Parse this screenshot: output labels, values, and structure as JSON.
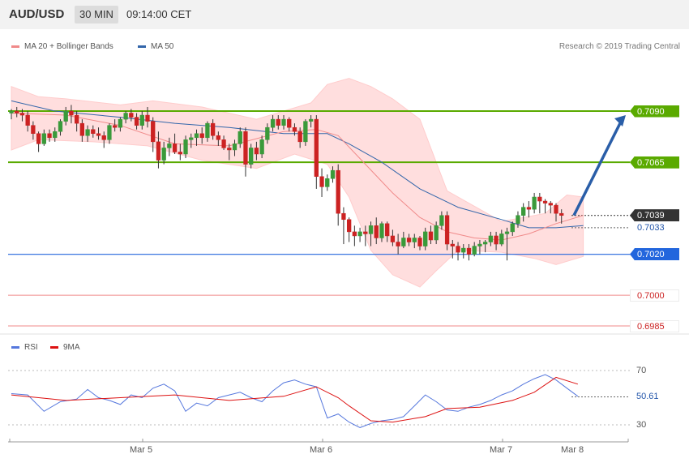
{
  "header": {
    "pair": "AUD/USD",
    "timeframe": "30 MIN",
    "time": "09:14:00 CET"
  },
  "legend": {
    "bb_label": "MA 20 + Bollinger Bands",
    "ma50_label": "MA 50",
    "rsi_label": "RSI",
    "ma9_label": "9MA"
  },
  "copyright": "Research © 2019 Trading Central",
  "colors": {
    "bull": "#3a9a3a",
    "bear": "#cc2222",
    "bb_fill": "#ffdede",
    "ma20": "#f08a8a",
    "ma50": "#3366aa",
    "resistance": "#5aaa00",
    "pivot": "#2266dd",
    "support": "#f08a8a",
    "rsi": "#5577dd",
    "rsi_ma": "#dd1111",
    "arrow": "#2a5ea8"
  },
  "price_levels": [
    {
      "label": "0.7090",
      "value": 0.709,
      "kind": "resistance"
    },
    {
      "label": "0.7065",
      "value": 0.7065,
      "kind": "resistance"
    },
    {
      "label": "0.7039",
      "value": 0.7039,
      "kind": "last"
    },
    {
      "label": "0.7033",
      "value": 0.7033,
      "kind": "ma"
    },
    {
      "label": "0.7020",
      "value": 0.702,
      "kind": "pivot"
    },
    {
      "label": "0.7000",
      "value": 0.7,
      "kind": "support"
    },
    {
      "label": "0.6985",
      "value": 0.6985,
      "kind": "support"
    }
  ],
  "rsi_levels": [
    {
      "label": "70",
      "value": 70
    },
    {
      "label": "30",
      "value": 30
    }
  ],
  "rsi_current": {
    "label": "50.61",
    "value": 50.61
  },
  "dates": [
    "Mar 5",
    "Mar 6",
    "Mar 7",
    "Mar 8"
  ],
  "chart_data": {
    "type": "candlestick",
    "title": "AUD/USD 30 MIN",
    "ylim": [
      0.698,
      0.711
    ],
    "candles": [
      [
        0.7089,
        0.7091,
        0.7086,
        0.709
      ],
      [
        0.709,
        0.7092,
        0.7087,
        0.7089
      ],
      [
        0.7089,
        0.7091,
        0.7085,
        0.7088
      ],
      [
        0.7088,
        0.709,
        0.708,
        0.7083
      ],
      [
        0.7083,
        0.7085,
        0.7076,
        0.7079
      ],
      [
        0.7079,
        0.708,
        0.707,
        0.7074
      ],
      [
        0.7074,
        0.7081,
        0.7073,
        0.7079
      ],
      [
        0.7079,
        0.7081,
        0.7075,
        0.7077
      ],
      [
        0.7077,
        0.7082,
        0.7075,
        0.708
      ],
      [
        0.708,
        0.7086,
        0.7078,
        0.7085
      ],
      [
        0.7085,
        0.7092,
        0.7083,
        0.709
      ],
      [
        0.709,
        0.7093,
        0.7084,
        0.7088
      ],
      [
        0.7088,
        0.709,
        0.708,
        0.7084
      ],
      [
        0.7084,
        0.7086,
        0.7075,
        0.7078
      ],
      [
        0.7078,
        0.7083,
        0.7075,
        0.7081
      ],
      [
        0.7081,
        0.7083,
        0.7077,
        0.7079
      ],
      [
        0.7079,
        0.7082,
        0.7076,
        0.7078
      ],
      [
        0.7078,
        0.708,
        0.7072,
        0.7076
      ],
      [
        0.7076,
        0.7084,
        0.7074,
        0.7083
      ],
      [
        0.7083,
        0.7086,
        0.708,
        0.7082
      ],
      [
        0.7082,
        0.7087,
        0.708,
        0.7086
      ],
      [
        0.7086,
        0.709,
        0.7084,
        0.7089
      ],
      [
        0.7089,
        0.7091,
        0.7085,
        0.7087
      ],
      [
        0.7087,
        0.7089,
        0.7081,
        0.7083
      ],
      [
        0.7083,
        0.709,
        0.7081,
        0.7088
      ],
      [
        0.7088,
        0.7092,
        0.7082,
        0.7085
      ],
      [
        0.7085,
        0.7087,
        0.707,
        0.7075
      ],
      [
        0.7075,
        0.708,
        0.7062,
        0.7066
      ],
      [
        0.7066,
        0.7075,
        0.7064,
        0.7072
      ],
      [
        0.7072,
        0.7077,
        0.7068,
        0.7074
      ],
      [
        0.7074,
        0.7079,
        0.7069,
        0.707
      ],
      [
        0.707,
        0.7074,
        0.7066,
        0.7069
      ],
      [
        0.7069,
        0.7078,
        0.7067,
        0.7076
      ],
      [
        0.7076,
        0.7079,
        0.7072,
        0.7077
      ],
      [
        0.7077,
        0.7081,
        0.7073,
        0.7079
      ],
      [
        0.7079,
        0.7082,
        0.7074,
        0.7077
      ],
      [
        0.7077,
        0.7085,
        0.7075,
        0.7084
      ],
      [
        0.7084,
        0.7086,
        0.7076,
        0.7078
      ],
      [
        0.7078,
        0.708,
        0.7073,
        0.7076
      ],
      [
        0.7076,
        0.7078,
        0.7071,
        0.7072
      ],
      [
        0.7072,
        0.7074,
        0.7066,
        0.7071
      ],
      [
        0.7071,
        0.7076,
        0.7068,
        0.7074
      ],
      [
        0.7074,
        0.7082,
        0.7072,
        0.708
      ],
      [
        0.708,
        0.7082,
        0.7058,
        0.7064
      ],
      [
        0.7064,
        0.7074,
        0.7062,
        0.7072
      ],
      [
        0.7072,
        0.7075,
        0.7066,
        0.7069
      ],
      [
        0.7069,
        0.7078,
        0.7067,
        0.7076
      ],
      [
        0.7076,
        0.7084,
        0.7074,
        0.7082
      ],
      [
        0.7082,
        0.7088,
        0.708,
        0.7086
      ],
      [
        0.7086,
        0.7088,
        0.7081,
        0.7083
      ],
      [
        0.7083,
        0.7088,
        0.7081,
        0.7086
      ],
      [
        0.7086,
        0.7087,
        0.708,
        0.7082
      ],
      [
        0.7082,
        0.7084,
        0.7078,
        0.708
      ],
      [
        0.708,
        0.7082,
        0.7072,
        0.7075
      ],
      [
        0.7075,
        0.7086,
        0.7073,
        0.7085
      ],
      [
        0.7085,
        0.7088,
        0.7082,
        0.7086
      ],
      [
        0.7086,
        0.7088,
        0.7052,
        0.7058
      ],
      [
        0.7058,
        0.7062,
        0.7048,
        0.7053
      ],
      [
        0.7053,
        0.7059,
        0.7051,
        0.7057
      ],
      [
        0.7057,
        0.7063,
        0.7055,
        0.7061
      ],
      [
        0.7061,
        0.7064,
        0.7034,
        0.704
      ],
      [
        0.704,
        0.7043,
        0.7025,
        0.7037
      ],
      [
        0.7037,
        0.7038,
        0.7026,
        0.7031
      ],
      [
        0.7031,
        0.7034,
        0.7024,
        0.7029
      ],
      [
        0.7029,
        0.7033,
        0.7026,
        0.7031
      ],
      [
        0.7031,
        0.7034,
        0.7024,
        0.703
      ],
      [
        0.703,
        0.7036,
        0.7024,
        0.7034
      ],
      [
        0.7034,
        0.7038,
        0.7025,
        0.7028
      ],
      [
        0.7028,
        0.7036,
        0.7026,
        0.7035
      ],
      [
        0.7035,
        0.7036,
        0.7026,
        0.7029
      ],
      [
        0.7029,
        0.7032,
        0.7024,
        0.7026
      ],
      [
        0.7026,
        0.703,
        0.702,
        0.7024
      ],
      [
        0.7024,
        0.7031,
        0.7023,
        0.7028
      ],
      [
        0.7028,
        0.703,
        0.7024,
        0.7026
      ],
      [
        0.7026,
        0.703,
        0.7023,
        0.7028
      ],
      [
        0.7028,
        0.7029,
        0.7022,
        0.7024
      ],
      [
        0.7024,
        0.7033,
        0.7022,
        0.7031
      ],
      [
        0.7031,
        0.7034,
        0.7025,
        0.7027
      ],
      [
        0.7027,
        0.7036,
        0.7025,
        0.7034
      ],
      [
        0.7034,
        0.7041,
        0.7032,
        0.7039
      ],
      [
        0.7039,
        0.7041,
        0.7022,
        0.7025
      ],
      [
        0.7025,
        0.7027,
        0.7018,
        0.7024
      ],
      [
        0.7024,
        0.7026,
        0.7017,
        0.7021
      ],
      [
        0.7021,
        0.7025,
        0.7018,
        0.7023
      ],
      [
        0.7023,
        0.7025,
        0.7017,
        0.702
      ],
      [
        0.702,
        0.7026,
        0.7019,
        0.7024
      ],
      [
        0.7024,
        0.7027,
        0.702,
        0.7025
      ],
      [
        0.7025,
        0.7027,
        0.7021,
        0.7026
      ],
      [
        0.7026,
        0.7031,
        0.7024,
        0.7029
      ],
      [
        0.7029,
        0.7031,
        0.7022,
        0.7025
      ],
      [
        0.7025,
        0.7032,
        0.7024,
        0.703
      ],
      [
        0.703,
        0.7033,
        0.7017,
        0.7031
      ],
      [
        0.7031,
        0.7036,
        0.7029,
        0.7035
      ],
      [
        0.7035,
        0.7041,
        0.7033,
        0.7039
      ],
      [
        0.7039,
        0.7045,
        0.7036,
        0.7043
      ],
      [
        0.7043,
        0.7046,
        0.7038,
        0.7042
      ],
      [
        0.7042,
        0.705,
        0.704,
        0.7048
      ],
      [
        0.7048,
        0.705,
        0.704,
        0.7046
      ],
      [
        0.7046,
        0.7047,
        0.704,
        0.7045
      ],
      [
        0.7045,
        0.7046,
        0.704,
        0.7044
      ],
      [
        0.7044,
        0.7045,
        0.7036,
        0.704
      ],
      [
        0.704,
        0.7042,
        0.7035,
        0.7039
      ]
    ],
    "ma20": [
      [
        0,
        0.7089
      ],
      [
        10,
        0.7088
      ],
      [
        20,
        0.7083
      ],
      [
        30,
        0.7074
      ],
      [
        40,
        0.7073
      ],
      [
        50,
        0.708
      ],
      [
        56,
        0.7081
      ],
      [
        60,
        0.7078
      ],
      [
        65,
        0.7064
      ],
      [
        70,
        0.705
      ],
      [
        75,
        0.7038
      ],
      [
        80,
        0.7031
      ],
      [
        85,
        0.7028
      ],
      [
        90,
        0.7027
      ],
      [
        95,
        0.703
      ],
      [
        100,
        0.7035
      ],
      [
        105,
        0.7039
      ]
    ],
    "bb_upper": [
      [
        0,
        0.7102
      ],
      [
        5,
        0.7097
      ],
      [
        10,
        0.7096
      ],
      [
        20,
        0.7093
      ],
      [
        26,
        0.7095
      ],
      [
        35,
        0.7092
      ],
      [
        45,
        0.7086
      ],
      [
        50,
        0.709
      ],
      [
        55,
        0.7094
      ],
      [
        58,
        0.7103
      ],
      [
        62,
        0.7106
      ],
      [
        66,
        0.7102
      ],
      [
        70,
        0.7096
      ],
      [
        75,
        0.7086
      ],
      [
        80,
        0.7051
      ],
      [
        90,
        0.7036
      ],
      [
        98,
        0.704
      ],
      [
        102,
        0.7049
      ],
      [
        105,
        0.7048
      ]
    ],
    "bb_lower": [
      [
        0,
        0.7071
      ],
      [
        5,
        0.7076
      ],
      [
        15,
        0.7075
      ],
      [
        25,
        0.7073
      ],
      [
        35,
        0.7066
      ],
      [
        45,
        0.7062
      ],
      [
        52,
        0.7069
      ],
      [
        58,
        0.7064
      ],
      [
        62,
        0.7048
      ],
      [
        66,
        0.7022
      ],
      [
        70,
        0.701
      ],
      [
        75,
        0.7004
      ],
      [
        78,
        0.7012
      ],
      [
        82,
        0.7022
      ],
      [
        90,
        0.7021
      ],
      [
        96,
        0.7018
      ],
      [
        100,
        0.7015
      ],
      [
        105,
        0.7019
      ]
    ],
    "ma50": [
      [
        0,
        0.7095
      ],
      [
        8,
        0.709
      ],
      [
        20,
        0.7087
      ],
      [
        30,
        0.7084
      ],
      [
        40,
        0.7082
      ],
      [
        50,
        0.7079
      ],
      [
        58,
        0.7079
      ],
      [
        62,
        0.7074
      ],
      [
        68,
        0.7065
      ],
      [
        75,
        0.7052
      ],
      [
        82,
        0.7043
      ],
      [
        90,
        0.7037
      ],
      [
        95,
        0.7033
      ],
      [
        100,
        0.7033
      ],
      [
        105,
        0.7034
      ]
    ],
    "rsi": [
      [
        0,
        53
      ],
      [
        3,
        52
      ],
      [
        6,
        40
      ],
      [
        9,
        47
      ],
      [
        12,
        49
      ],
      [
        14,
        56
      ],
      [
        16,
        50
      ],
      [
        18,
        48
      ],
      [
        20,
        45
      ],
      [
        22,
        52
      ],
      [
        24,
        50
      ],
      [
        26,
        57
      ],
      [
        28,
        60
      ],
      [
        30,
        55
      ],
      [
        32,
        40
      ],
      [
        34,
        46
      ],
      [
        36,
        44
      ],
      [
        38,
        50
      ],
      [
        40,
        52
      ],
      [
        42,
        54
      ],
      [
        44,
        50
      ],
      [
        46,
        47
      ],
      [
        48,
        55
      ],
      [
        50,
        61
      ],
      [
        52,
        63
      ],
      [
        54,
        60
      ],
      [
        56,
        58
      ],
      [
        58,
        35
      ],
      [
        60,
        38
      ],
      [
        62,
        32
      ],
      [
        64,
        28
      ],
      [
        66,
        31
      ],
      [
        68,
        33
      ],
      [
        70,
        34
      ],
      [
        72,
        36
      ],
      [
        74,
        44
      ],
      [
        76,
        52
      ],
      [
        78,
        47
      ],
      [
        80,
        41
      ],
      [
        82,
        40
      ],
      [
        84,
        43
      ],
      [
        86,
        45
      ],
      [
        88,
        48
      ],
      [
        90,
        52
      ],
      [
        92,
        55
      ],
      [
        94,
        60
      ],
      [
        96,
        64
      ],
      [
        98,
        67
      ],
      [
        100,
        63
      ],
      [
        102,
        57
      ],
      [
        104,
        51
      ]
    ],
    "rsi_ma": [
      [
        0,
        52
      ],
      [
        10,
        48
      ],
      [
        20,
        50
      ],
      [
        30,
        52
      ],
      [
        40,
        48
      ],
      [
        50,
        51
      ],
      [
        56,
        58
      ],
      [
        60,
        50
      ],
      [
        62,
        44
      ],
      [
        66,
        33
      ],
      [
        70,
        32
      ],
      [
        76,
        36
      ],
      [
        80,
        42
      ],
      [
        86,
        43
      ],
      [
        92,
        48
      ],
      [
        96,
        54
      ],
      [
        100,
        65
      ],
      [
        104,
        60
      ]
    ],
    "rsi_ylim": [
      20,
      80
    ],
    "dates": [
      "Mar 5",
      "Mar 6",
      "Mar 7",
      "Mar 8"
    ]
  }
}
